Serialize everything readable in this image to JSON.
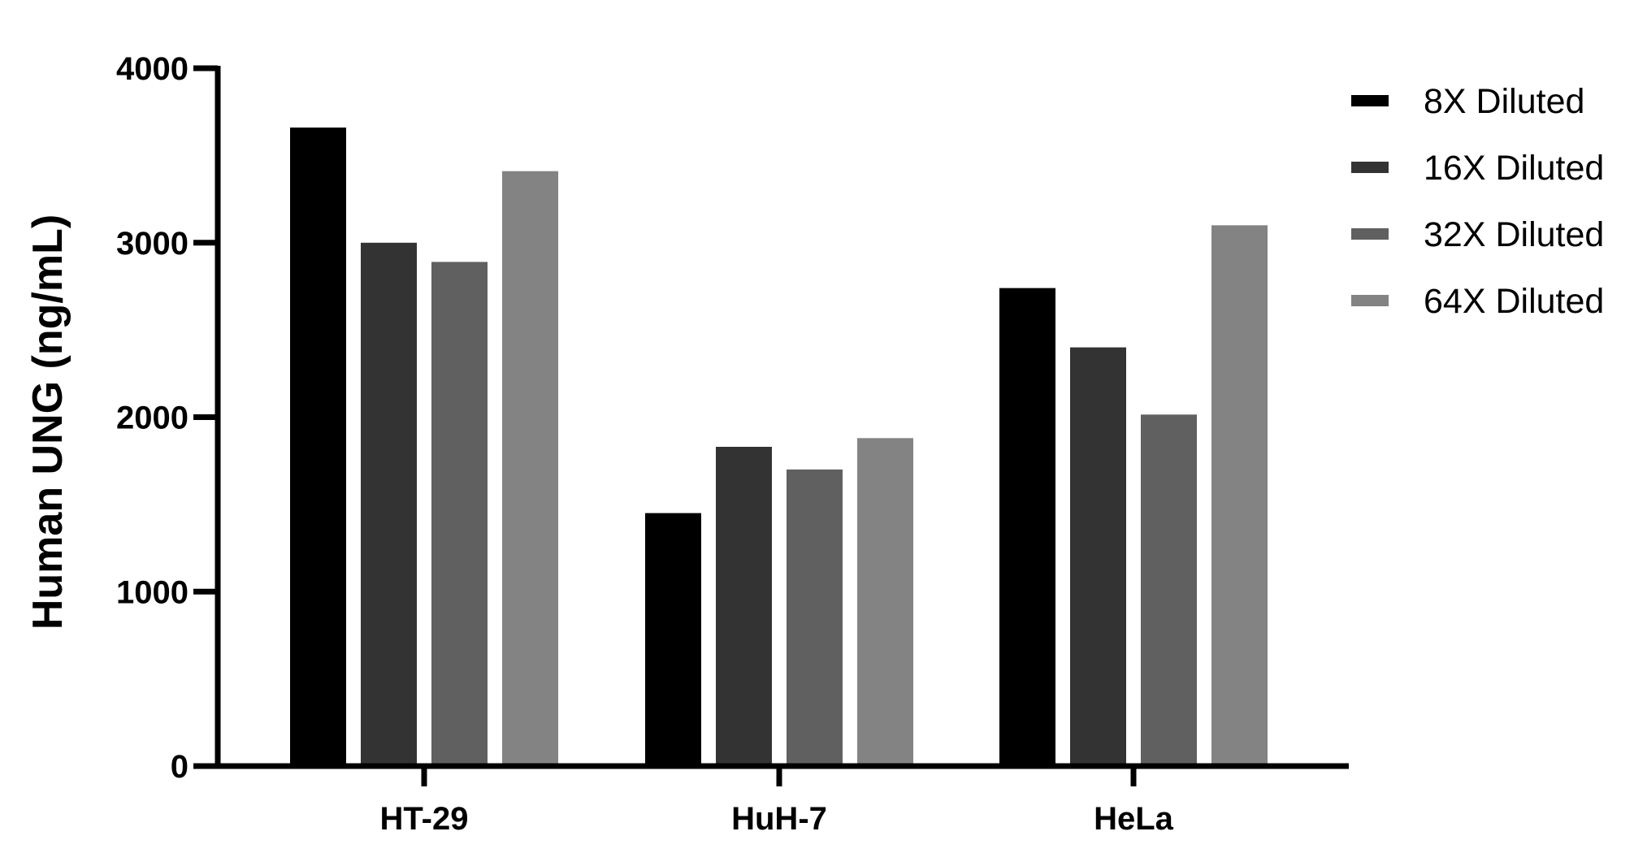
{
  "chart_data": {
    "type": "bar",
    "title": "",
    "ylabel": "Human UNG (ng/mL)",
    "xlabel": "",
    "ylim": [
      0,
      4000
    ],
    "yticks": [
      0,
      1000,
      2000,
      3000,
      4000
    ],
    "categories": [
      "HT-29",
      "HuH-7",
      "HeLa"
    ],
    "series": [
      {
        "name": "8X Diluted",
        "color": "#000000",
        "values": [
          3660,
          1450,
          2740
        ]
      },
      {
        "name": "16X Diluted",
        "color": "#333333",
        "values": [
          3000,
          1830,
          2400
        ]
      },
      {
        "name": "32X Diluted",
        "color": "#606060",
        "values": [
          2890,
          1700,
          2015
        ]
      },
      {
        "name": "64X Diluted",
        "color": "#838383",
        "values": [
          3410,
          1880,
          3100
        ]
      }
    ],
    "legend": "right",
    "grid": false
  }
}
